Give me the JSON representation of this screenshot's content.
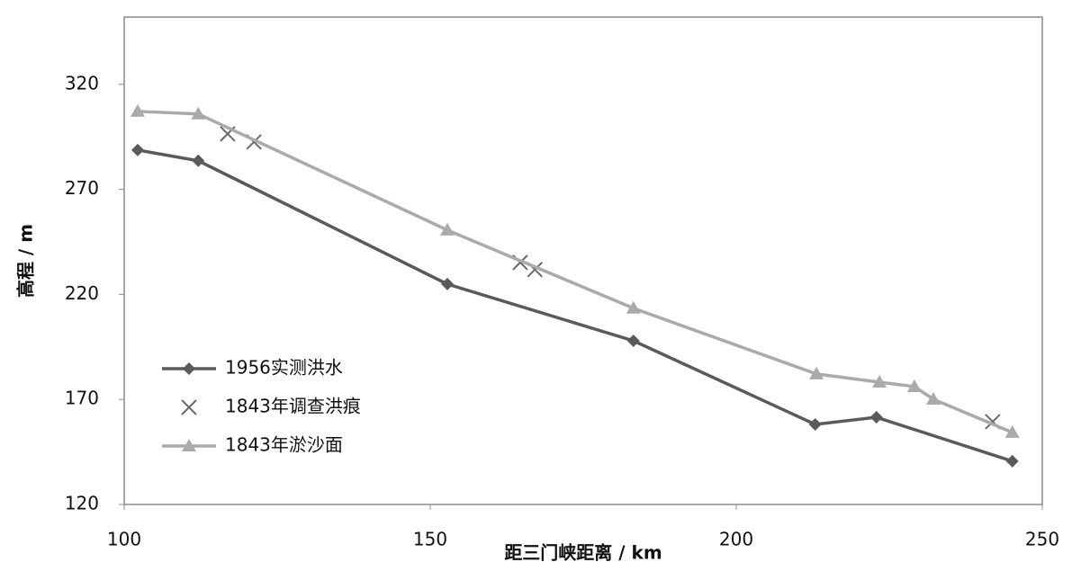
{
  "chart_data": {
    "type": "line",
    "x_label": "距三门峡距离 / km",
    "y_label": "高程 / m",
    "xlim": [
      100,
      250
    ],
    "xticks": [
      100,
      150,
      200,
      250
    ],
    "ylim": [
      120,
      352
    ],
    "yticks": [
      120,
      170,
      220,
      270,
      320
    ],
    "grid": false,
    "legend": "lower left",
    "series": [
      {
        "name": "1956实测洪水",
        "color": "#5a5a5a",
        "marker": "diamond",
        "line": true,
        "x": [
          102.2,
          112.1,
          152.8,
          183.2,
          212.9,
          222.9,
          245.1
        ],
        "values": [
          288.7,
          283.6,
          224.9,
          197.9,
          158.1,
          161.5,
          140.6
        ]
      },
      {
        "name": "1843年调查洪痕",
        "color": "#6a6a6a",
        "marker": "x",
        "line": false,
        "x": [
          116.9,
          121.2,
          164.7,
          167.1,
          241.9
        ],
        "values": [
          296.4,
          292.6,
          235.2,
          231.8,
          159.4
        ]
      },
      {
        "name": "1843年淤沙面",
        "color": "#aaaaaa",
        "marker": "triangle",
        "line": true,
        "x": [
          102.2,
          112.1,
          152.8,
          183.2,
          213.1,
          223.4,
          229.1,
          232.2,
          245.1
        ],
        "values": [
          307.1,
          305.9,
          250.6,
          213.4,
          182.1,
          178.2,
          176.1,
          170.1,
          154.3
        ]
      }
    ]
  }
}
